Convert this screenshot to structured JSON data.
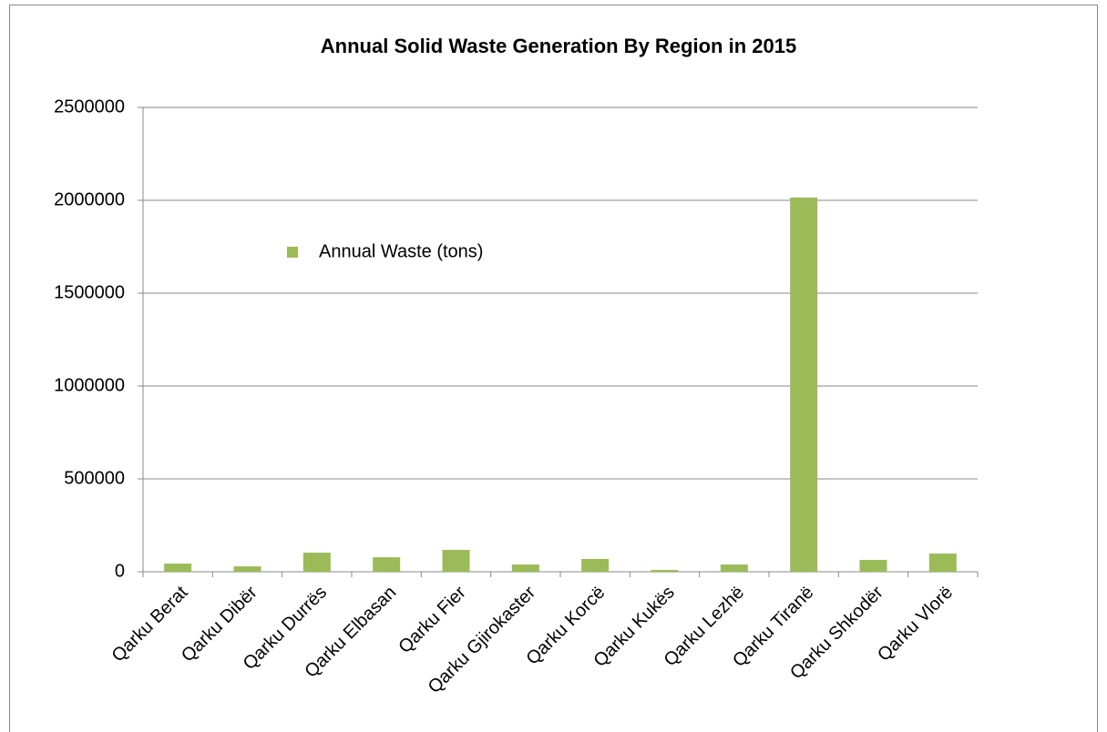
{
  "chart_data": {
    "type": "bar",
    "title": "Annual Solid Waste Generation By Region in 2015",
    "categories": [
      "Qarku Berat",
      "Qarku Dibër",
      "Qarku Durrës",
      "Qarku Elbasan",
      "Qarku Fier",
      "Qarku Gjirokaster",
      "Qarku Korcë",
      "Qarku Kukës",
      "Qarku Lezhë",
      "Qarku Tiranë",
      "Qarku Shkodër",
      "Qarku Vlorë"
    ],
    "series": [
      {
        "name": "Annual Waste (tons)",
        "color": "#9bbb59",
        "values": [
          44000,
          29000,
          103000,
          78000,
          118000,
          39000,
          69000,
          10000,
          39000,
          2015000,
          64000,
          98000
        ]
      }
    ],
    "ylim": [
      0,
      2500000
    ],
    "yticks": [
      0,
      500000,
      1000000,
      1500000,
      2000000,
      2500000
    ],
    "grid": true,
    "legend": "upper left"
  }
}
